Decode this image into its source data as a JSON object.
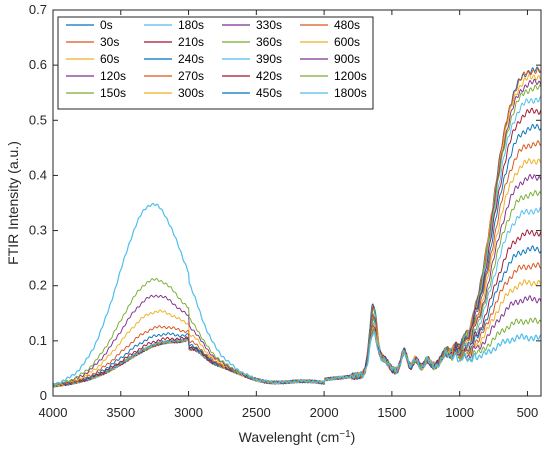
{
  "chart_data": {
    "type": "line",
    "title": "",
    "xlabel_main": "Wavelenght (cm",
    "xlabel_sup": "−1",
    "xlabel_end": ")",
    "ylabel": "FTIR Intensity (a.u.)",
    "xlim": [
      4000,
      400
    ],
    "ylim": [
      0,
      0.7
    ],
    "x_reversed": true,
    "grid": false,
    "legend_position": "top-left",
    "legend_columns": 4,
    "x_ticks": [
      4000,
      3500,
      3000,
      2500,
      2000,
      1500,
      1000,
      500
    ],
    "x_tick_labels": [
      "4000",
      "3500",
      "3000",
      "2500",
      "2000",
      "1500",
      "1000",
      "500"
    ],
    "y_ticks": [
      0,
      0.1,
      0.2,
      0.3,
      0.4,
      0.5,
      0.6,
      0.7
    ],
    "y_tick_labels": [
      "0",
      "0.1",
      "0.2",
      "0.3",
      "0.4",
      "0.5",
      "0.6",
      "0.7"
    ],
    "series": [
      {
        "name": "0s",
        "color": "#0072BD",
        "oh_peak": 0.078,
        "low_end": 0.6
      },
      {
        "name": "30s",
        "color": "#D95319",
        "oh_peak": 0.078,
        "low_end": 0.6
      },
      {
        "name": "60s",
        "color": "#EDB120",
        "oh_peak": 0.078,
        "low_end": 0.59
      },
      {
        "name": "120s",
        "color": "#7E2F8E",
        "oh_peak": 0.078,
        "low_end": 0.58
      },
      {
        "name": "150s",
        "color": "#77AC30",
        "oh_peak": 0.078,
        "low_end": 0.57
      },
      {
        "name": "180s",
        "color": "#4DBEEE",
        "oh_peak": 0.078,
        "low_end": 0.55
      },
      {
        "name": "210s",
        "color": "#A2142F",
        "oh_peak": 0.078,
        "low_end": 0.53
      },
      {
        "name": "240s",
        "color": "#0072BD",
        "oh_peak": 0.078,
        "low_end": 0.5
      },
      {
        "name": "270s",
        "color": "#D95319",
        "oh_peak": 0.078,
        "low_end": 0.47
      },
      {
        "name": "300s",
        "color": "#EDB120",
        "oh_peak": 0.078,
        "low_end": 0.44
      },
      {
        "name": "330s",
        "color": "#7E2F8E",
        "oh_peak": 0.078,
        "low_end": 0.41
      },
      {
        "name": "360s",
        "color": "#77AC30",
        "oh_peak": 0.079,
        "low_end": 0.38
      },
      {
        "name": "390s",
        "color": "#4DBEEE",
        "oh_peak": 0.08,
        "low_end": 0.35
      },
      {
        "name": "420s",
        "color": "#A2142F",
        "oh_peak": 0.085,
        "low_end": 0.31
      },
      {
        "name": "450s",
        "color": "#0072BD",
        "oh_peak": 0.095,
        "low_end": 0.28
      },
      {
        "name": "480s",
        "color": "#D95319",
        "oh_peak": 0.11,
        "low_end": 0.25
      },
      {
        "name": "600s",
        "color": "#EDB120",
        "oh_peak": 0.14,
        "low_end": 0.22
      },
      {
        "name": "900s",
        "color": "#7E2F8E",
        "oh_peak": 0.17,
        "low_end": 0.19
      },
      {
        "name": "1200s",
        "color": "#77AC30",
        "oh_peak": 0.2,
        "low_end": 0.15
      },
      {
        "name": "1800s",
        "color": "#4DBEEE",
        "oh_peak": 0.34,
        "low_end": 0.12
      }
    ]
  }
}
